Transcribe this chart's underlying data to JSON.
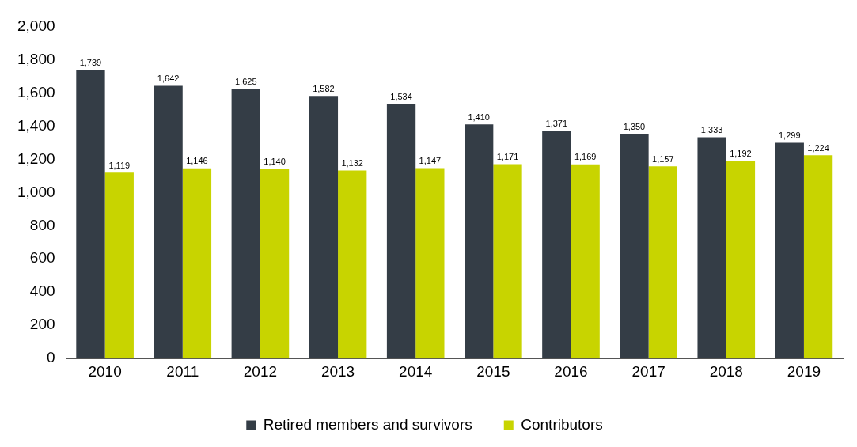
{
  "chart_data": {
    "type": "bar",
    "categories": [
      "2010",
      "2011",
      "2012",
      "2013",
      "2014",
      "2015",
      "2016",
      "2017",
      "2018",
      "2019"
    ],
    "series": [
      {
        "name": "Retired members and survivors",
        "color": "#343d46",
        "values": [
          1739,
          1642,
          1625,
          1582,
          1534,
          1410,
          1371,
          1350,
          1333,
          1299
        ],
        "value_labels": [
          "1,739",
          "1,642",
          "1,625",
          "1,582",
          "1,534",
          "1,410",
          "1,371",
          "1,350",
          "1,333",
          "1,299"
        ]
      },
      {
        "name": "Contributors",
        "color": "#c8d400",
        "values": [
          1119,
          1146,
          1140,
          1132,
          1147,
          1171,
          1169,
          1157,
          1192,
          1224
        ],
        "value_labels": [
          "1,119",
          "1,146",
          "1,140",
          "1,132",
          "1,147",
          "1,171",
          "1,169",
          "1,157",
          "1,192",
          "1,224"
        ]
      }
    ],
    "ylim": [
      0,
      2000
    ],
    "yticks": [
      {
        "value": 0,
        "label": "0"
      },
      {
        "value": 200,
        "label": "200"
      },
      {
        "value": 400,
        "label": "400"
      },
      {
        "value": 600,
        "label": "600"
      },
      {
        "value": 800,
        "label": "800"
      },
      {
        "value": 1000,
        "label": "1,000"
      },
      {
        "value": 1200,
        "label": "1,200"
      },
      {
        "value": 1400,
        "label": "1,400"
      },
      {
        "value": 1600,
        "label": "1,600"
      },
      {
        "value": 1800,
        "label": "1,800"
      },
      {
        "value": 2000,
        "label": "2,000"
      }
    ],
    "grid": false,
    "legend": "bottom"
  }
}
